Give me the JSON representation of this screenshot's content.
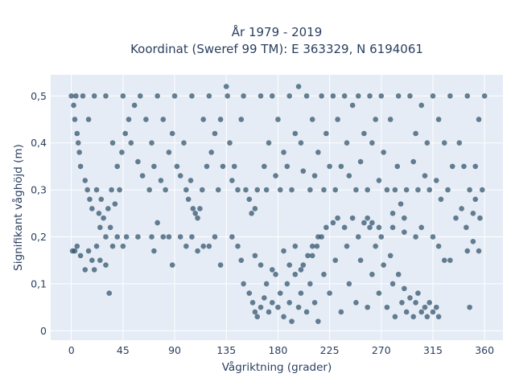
{
  "chart_data": {
    "type": "scatter",
    "title": "År 1979 - 2019",
    "subtitle": "Koordinat (Sweref 99 TM): E 363329, N 6194061",
    "xlabel": "Vågriktning (grader)",
    "ylabel": "Signifikant våghöjd (m)",
    "xlim": [
      -18,
      376
    ],
    "ylim": [
      -0.02,
      0.545
    ],
    "x_ticks": [
      0,
      45,
      90,
      135,
      180,
      225,
      270,
      315,
      360
    ],
    "x_tick_labels": [
      "0",
      "45",
      "90",
      "135",
      "180",
      "225",
      "270",
      "315",
      "360"
    ],
    "y_ticks": [
      0,
      0.1,
      0.2,
      0.3,
      0.4,
      0.5
    ],
    "y_tick_labels": [
      "0",
      "0,1",
      "0,2",
      "0,3",
      "0,4",
      "0,5"
    ],
    "grid": true,
    "marker_color": "#2e5068",
    "background_color": "#e5ecf6",
    "series": [
      {
        "points": [
          [
            0,
            0.5
          ],
          [
            2,
            0.48
          ],
          [
            3,
            0.45
          ],
          [
            4,
            0.5
          ],
          [
            5,
            0.42
          ],
          [
            6,
            0.4
          ],
          [
            7,
            0.38
          ],
          [
            8,
            0.35
          ],
          [
            10,
            0.5
          ],
          [
            12,
            0.32
          ],
          [
            14,
            0.3
          ],
          [
            15,
            0.45
          ],
          [
            16,
            0.28
          ],
          [
            18,
            0.26
          ],
          [
            20,
            0.5
          ],
          [
            22,
            0.3
          ],
          [
            24,
            0.25
          ],
          [
            25,
            0.22
          ],
          [
            26,
            0.28
          ],
          [
            28,
            0.24
          ],
          [
            30,
            0.2
          ],
          [
            30,
            0.5
          ],
          [
            32,
            0.26
          ],
          [
            34,
            0.22
          ],
          [
            35,
            0.3
          ],
          [
            36,
            0.4
          ],
          [
            38,
            0.27
          ],
          [
            40,
            0.35
          ],
          [
            42,
            0.3
          ],
          [
            44,
            0.38
          ],
          [
            45,
            0.5
          ],
          [
            47,
            0.42
          ],
          [
            50,
            0.45
          ],
          [
            52,
            0.4
          ],
          [
            55,
            0.48
          ],
          [
            58,
            0.36
          ],
          [
            60,
            0.5
          ],
          [
            62,
            0.33
          ],
          [
            65,
            0.45
          ],
          [
            68,
            0.3
          ],
          [
            70,
            0.4
          ],
          [
            72,
            0.35
          ],
          [
            75,
            0.5
          ],
          [
            78,
            0.32
          ],
          [
            80,
            0.45
          ],
          [
            82,
            0.3
          ],
          [
            85,
            0.38
          ],
          [
            88,
            0.42
          ],
          [
            90,
            0.5
          ],
          [
            92,
            0.35
          ],
          [
            95,
            0.33
          ],
          [
            98,
            0.4
          ],
          [
            100,
            0.3
          ],
          [
            102,
            0.28
          ],
          [
            104,
            0.32
          ],
          [
            105,
            0.5
          ],
          [
            106,
            0.26
          ],
          [
            108,
            0.25
          ],
          [
            110,
            0.24
          ],
          [
            112,
            0.26
          ],
          [
            114,
            0.3
          ],
          [
            115,
            0.45
          ],
          [
            118,
            0.35
          ],
          [
            120,
            0.5
          ],
          [
            122,
            0.38
          ],
          [
            125,
            0.42
          ],
          [
            128,
            0.3
          ],
          [
            130,
            0.45
          ],
          [
            132,
            0.35
          ],
          [
            135,
            0.52
          ],
          [
            136,
            0.5
          ],
          [
            138,
            0.4
          ],
          [
            140,
            0.32
          ],
          [
            142,
            0.35
          ],
          [
            145,
            0.3
          ],
          [
            148,
            0.45
          ],
          [
            150,
            0.5
          ],
          [
            152,
            0.3
          ],
          [
            155,
            0.28
          ],
          [
            157,
            0.25
          ],
          [
            160,
            0.26
          ],
          [
            162,
            0.3
          ],
          [
            165,
            0.5
          ],
          [
            168,
            0.35
          ],
          [
            170,
            0.3
          ],
          [
            172,
            0.4
          ],
          [
            175,
            0.5
          ],
          [
            178,
            0.33
          ],
          [
            180,
            0.45
          ],
          [
            182,
            0.3
          ],
          [
            185,
            0.38
          ],
          [
            188,
            0.35
          ],
          [
            190,
            0.5
          ],
          [
            192,
            0.3
          ],
          [
            195,
            0.42
          ],
          [
            198,
            0.52
          ],
          [
            200,
            0.4
          ],
          [
            202,
            0.34
          ],
          [
            205,
            0.5
          ],
          [
            208,
            0.3
          ],
          [
            210,
            0.45
          ],
          [
            212,
            0.33
          ],
          [
            215,
            0.38
          ],
          [
            218,
            0.5
          ],
          [
            220,
            0.3
          ],
          [
            222,
            0.42
          ],
          [
            225,
            0.35
          ],
          [
            228,
            0.5
          ],
          [
            230,
            0.3
          ],
          [
            232,
            0.45
          ],
          [
            235,
            0.35
          ],
          [
            238,
            0.5
          ],
          [
            240,
            0.4
          ],
          [
            242,
            0.33
          ],
          [
            245,
            0.48
          ],
          [
            248,
            0.3
          ],
          [
            250,
            0.5
          ],
          [
            252,
            0.36
          ],
          [
            255,
            0.42
          ],
          [
            258,
            0.3
          ],
          [
            260,
            0.5
          ],
          [
            262,
            0.4
          ],
          [
            265,
            0.45
          ],
          [
            268,
            0.32
          ],
          [
            270,
            0.5
          ],
          [
            272,
            0.38
          ],
          [
            275,
            0.3
          ],
          [
            278,
            0.45
          ],
          [
            280,
            0.25
          ],
          [
            282,
            0.3
          ],
          [
            284,
            0.35
          ],
          [
            285,
            0.5
          ],
          [
            287,
            0.27
          ],
          [
            290,
            0.24
          ],
          [
            292,
            0.3
          ],
          [
            295,
            0.5
          ],
          [
            298,
            0.36
          ],
          [
            300,
            0.42
          ],
          [
            302,
            0.3
          ],
          [
            305,
            0.48
          ],
          [
            308,
            0.33
          ],
          [
            310,
            0.4
          ],
          [
            312,
            0.3
          ],
          [
            315,
            0.5
          ],
          [
            318,
            0.32
          ],
          [
            320,
            0.45
          ],
          [
            322,
            0.28
          ],
          [
            325,
            0.4
          ],
          [
            328,
            0.3
          ],
          [
            330,
            0.5
          ],
          [
            332,
            0.35
          ],
          [
            335,
            0.24
          ],
          [
            338,
            0.4
          ],
          [
            340,
            0.26
          ],
          [
            342,
            0.35
          ],
          [
            344,
            0.22
          ],
          [
            345,
            0.5
          ],
          [
            347,
            0.3
          ],
          [
            350,
            0.25
          ],
          [
            352,
            0.35
          ],
          [
            355,
            0.45
          ],
          [
            358,
            0.3
          ],
          [
            360,
            0.5
          ],
          [
            1,
            0.17
          ],
          [
            3,
            0.17
          ],
          [
            5,
            0.18
          ],
          [
            8,
            0.16
          ],
          [
            12,
            0.13
          ],
          [
            15,
            0.17
          ],
          [
            18,
            0.15
          ],
          [
            20,
            0.13
          ],
          [
            22,
            0.18
          ],
          [
            25,
            0.15
          ],
          [
            30,
            0.14
          ],
          [
            33,
            0.08
          ],
          [
            36,
            0.18
          ],
          [
            40,
            0.2
          ],
          [
            45,
            0.18
          ],
          [
            48,
            0.2
          ],
          [
            58,
            0.2
          ],
          [
            70,
            0.2
          ],
          [
            72,
            0.17
          ],
          [
            75,
            0.23
          ],
          [
            80,
            0.2
          ],
          [
            85,
            0.2
          ],
          [
            88,
            0.14
          ],
          [
            95,
            0.2
          ],
          [
            100,
            0.18
          ],
          [
            105,
            0.2
          ],
          [
            110,
            0.17
          ],
          [
            115,
            0.18
          ],
          [
            120,
            0.18
          ],
          [
            125,
            0.2
          ],
          [
            130,
            0.14
          ],
          [
            140,
            0.2
          ],
          [
            145,
            0.18
          ],
          [
            148,
            0.15
          ],
          [
            150,
            0.1
          ],
          [
            155,
            0.08
          ],
          [
            160,
            0.16
          ],
          [
            165,
            0.14
          ],
          [
            175,
            0.13
          ],
          [
            185,
            0.17
          ],
          [
            190,
            0.14
          ],
          [
            195,
            0.18
          ],
          [
            200,
            0.13
          ],
          [
            206,
            0.16
          ],
          [
            210,
            0.18
          ],
          [
            215,
            0.2
          ],
          [
            258,
            0.24
          ],
          [
            262,
            0.23
          ],
          [
            268,
            0.22
          ],
          [
            280,
            0.22
          ],
          [
            290,
            0.21
          ],
          [
            300,
            0.2
          ],
          [
            305,
            0.22
          ],
          [
            315,
            0.2
          ],
          [
            320,
            0.18
          ],
          [
            325,
            0.15
          ],
          [
            330,
            0.15
          ],
          [
            345,
            0.17
          ],
          [
            350,
            0.19
          ],
          [
            355,
            0.17
          ],
          [
            347,
            0.05
          ],
          [
            352,
            0.28
          ],
          [
            356,
            0.24
          ],
          [
            158,
            0.06
          ],
          [
            160,
            0.04
          ],
          [
            162,
            0.03
          ],
          [
            165,
            0.05
          ],
          [
            168,
            0.07
          ],
          [
            170,
            0.1
          ],
          [
            172,
            0.04
          ],
          [
            175,
            0.06
          ],
          [
            178,
            0.12
          ],
          [
            180,
            0.05
          ],
          [
            182,
            0.08
          ],
          [
            185,
            0.03
          ],
          [
            188,
            0.1
          ],
          [
            190,
            0.06
          ],
          [
            192,
            0.02
          ],
          [
            195,
            0.12
          ],
          [
            198,
            0.05
          ],
          [
            200,
            0.08
          ],
          [
            202,
            0.14
          ],
          [
            205,
            0.04
          ],
          [
            208,
            0.1
          ],
          [
            210,
            0.16
          ],
          [
            212,
            0.06
          ],
          [
            214,
            0.18
          ],
          [
            215,
            0.02
          ],
          [
            218,
            0.2
          ],
          [
            220,
            0.12
          ],
          [
            222,
            0.22
          ],
          [
            225,
            0.08
          ],
          [
            228,
            0.23
          ],
          [
            230,
            0.15
          ],
          [
            232,
            0.24
          ],
          [
            235,
            0.04
          ],
          [
            238,
            0.22
          ],
          [
            240,
            0.18
          ],
          [
            242,
            0.1
          ],
          [
            245,
            0.24
          ],
          [
            248,
            0.06
          ],
          [
            250,
            0.2
          ],
          [
            252,
            0.15
          ],
          [
            255,
            0.23
          ],
          [
            258,
            0.05
          ],
          [
            260,
            0.22
          ],
          [
            262,
            0.12
          ],
          [
            265,
            0.18
          ],
          [
            268,
            0.08
          ],
          [
            270,
            0.2
          ],
          [
            272,
            0.14
          ],
          [
            275,
            0.05
          ],
          [
            278,
            0.16
          ],
          [
            280,
            0.1
          ],
          [
            282,
            0.03
          ],
          [
            285,
            0.12
          ],
          [
            288,
            0.06
          ],
          [
            290,
            0.09
          ],
          [
            292,
            0.04
          ],
          [
            295,
            0.07
          ],
          [
            298,
            0.03
          ],
          [
            300,
            0.06
          ],
          [
            302,
            0.08
          ],
          [
            305,
            0.04
          ],
          [
            308,
            0.05
          ],
          [
            310,
            0.03
          ],
          [
            312,
            0.06
          ],
          [
            315,
            0.04
          ],
          [
            318,
            0.05
          ],
          [
            320,
            0.03
          ]
        ]
      }
    ]
  }
}
